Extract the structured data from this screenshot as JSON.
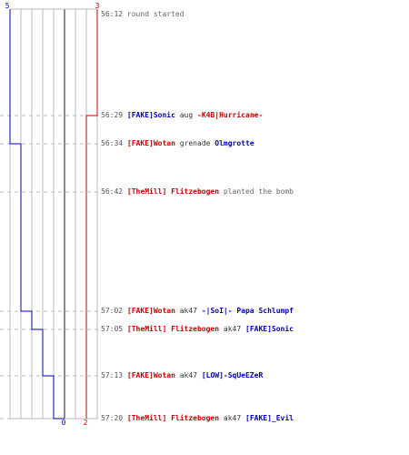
{
  "colors": {
    "team_blue": "#0000bb",
    "team_red": "#cc0000",
    "grid": "#bbbbbb",
    "center": "#666666",
    "dash": "#bbbbbb",
    "text": "#333333"
  },
  "scores": {
    "blue_start": "5",
    "red_start": "3",
    "blue_end": "0",
    "red_end": "2"
  },
  "events": [
    {
      "time": "56:12",
      "type": "info",
      "text": "round started",
      "blue_alive": 5,
      "red_alive": 3
    },
    {
      "time": "56:29",
      "type": "kill",
      "killer": "[FAKE]Sonic",
      "killer_team": "blue",
      "weapon": "aug",
      "victim": "-K4B|Hurricane-",
      "victim_team": "red",
      "blue_alive": 5,
      "red_alive": 2
    },
    {
      "time": "56:34",
      "type": "kill",
      "killer": "[FAKE]Wotan",
      "killer_team": "red",
      "weapon": "grenade",
      "victim": "Olmgrotte",
      "victim_team": "blue",
      "blue_alive": 4,
      "red_alive": 2
    },
    {
      "time": "56:42",
      "type": "plant",
      "player": "[TheMill] Flitzebogen",
      "player_team": "red",
      "text": "planted the bomb",
      "blue_alive": 4,
      "red_alive": 2
    },
    {
      "time": "57:02",
      "type": "kill",
      "killer": "[FAKE]Wotan",
      "killer_team": "red",
      "weapon": "ak47",
      "victim": "-|SoI|- Papa Schlumpf",
      "victim_team": "blue",
      "blue_alive": 3,
      "red_alive": 2
    },
    {
      "time": "57:05",
      "type": "kill",
      "killer": "[TheMill] Flitzebogen",
      "killer_team": "red",
      "weapon": "ak47",
      "victim": "[FAKE]Sonic",
      "victim_team": "blue",
      "blue_alive": 2,
      "red_alive": 2
    },
    {
      "time": "57:13",
      "type": "kill",
      "killer": "[FAKE]Wotan",
      "killer_team": "red",
      "weapon": "ak47",
      "victim": "[LOW]-SqUeEZeR",
      "victim_team": "blue",
      "blue_alive": 1,
      "red_alive": 2
    },
    {
      "time": "57:20",
      "type": "kill",
      "killer": "[TheMill] Flitzebogen",
      "killer_team": "red",
      "weapon": "ak47",
      "victim": "[FAKE]_Evil",
      "victim_team": "blue",
      "blue_alive": 0,
      "red_alive": 2
    }
  ]
}
